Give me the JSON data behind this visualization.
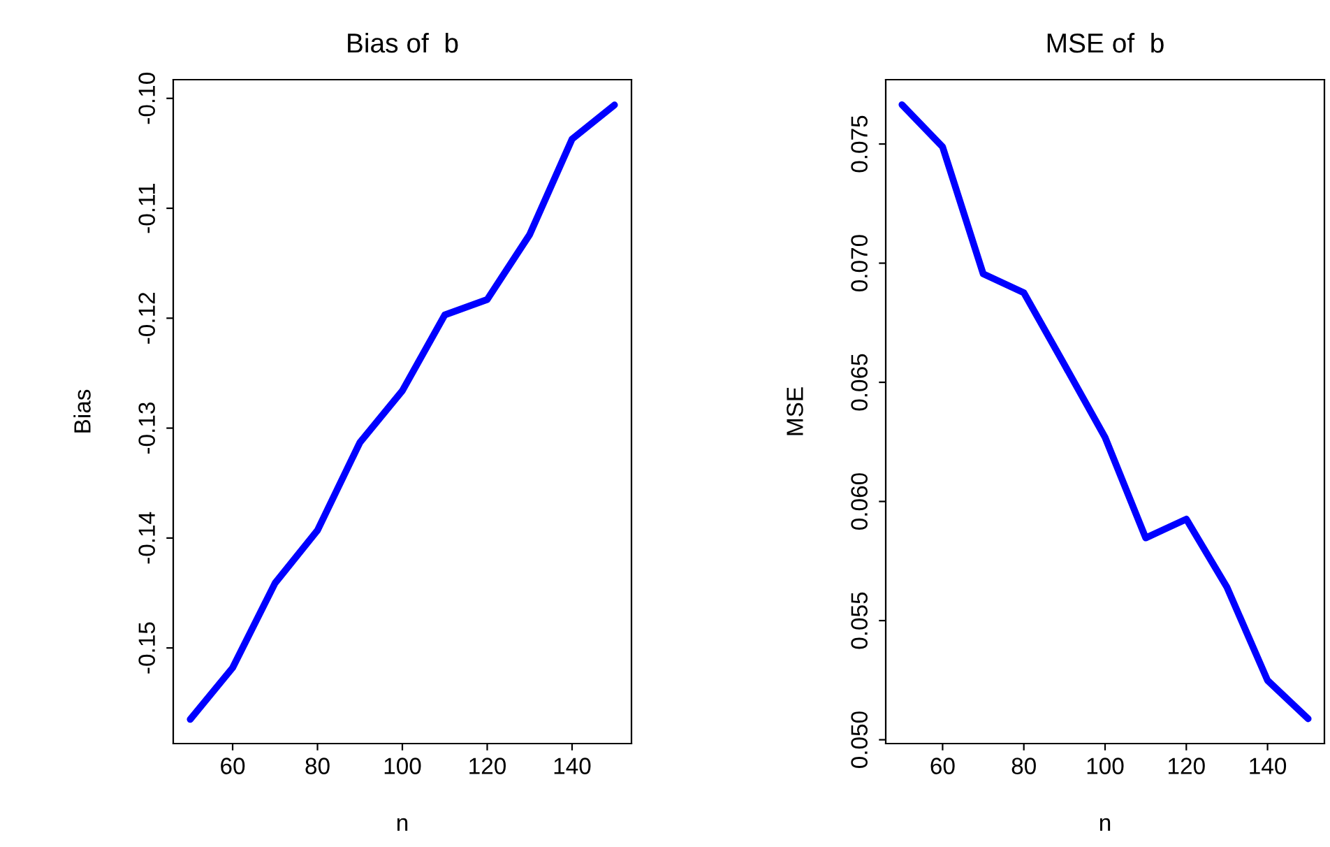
{
  "chart_data": [
    {
      "type": "line",
      "title": "Bias of  b",
      "xlabel": "n",
      "ylabel": "Bias",
      "x": [
        50,
        60,
        70,
        80,
        90,
        100,
        110,
        120,
        130,
        140,
        150
      ],
      "series": [
        {
          "color": "#0000ff",
          "values": [
            -0.1565,
            -0.1518,
            -0.1441,
            -0.1393,
            -0.1313,
            -0.1266,
            -0.1197,
            -0.1183,
            -0.1124,
            -0.1037,
            -0.1006
          ]
        }
      ],
      "xlim": [
        46,
        154
      ],
      "ylim": [
        -0.1587,
        -0.0983
      ],
      "xticks": [
        60,
        80,
        100,
        120,
        140
      ],
      "yticks": [
        -0.15,
        -0.14,
        -0.13,
        -0.12,
        -0.11,
        {
          "value": -0.1,
          "label": "-0.10"
        }
      ],
      "grid": false,
      "legend": false,
      "marker": "none",
      "line_style": "solid"
    },
    {
      "type": "line",
      "title": "MSE of  b",
      "xlabel": "n",
      "ylabel": "MSE",
      "x": [
        50,
        60,
        70,
        80,
        90,
        100,
        110,
        120,
        130,
        140,
        150
      ],
      "series": [
        {
          "color": "#0000ff",
          "values": [
            0.07665,
            0.07488,
            0.06955,
            0.06876,
            0.06574,
            0.06269,
            0.05847,
            0.05926,
            0.0564,
            0.05249,
            0.05088
          ]
        }
      ],
      "xlim": [
        46,
        154
      ],
      "ylim": [
        0.04984,
        0.0777
      ],
      "xticks": [
        60,
        80,
        100,
        120,
        140
      ],
      "yticks": [
        {
          "value": 0.05,
          "label": "0.050"
        },
        {
          "value": 0.055,
          "label": "0.055"
        },
        {
          "value": 0.06,
          "label": "0.060"
        },
        {
          "value": 0.065,
          "label": "0.065"
        },
        {
          "value": 0.07,
          "label": "0.070"
        },
        {
          "value": 0.075,
          "label": "0.075"
        }
      ],
      "grid": false,
      "legend": false,
      "marker": "none",
      "line_style": "solid"
    }
  ]
}
